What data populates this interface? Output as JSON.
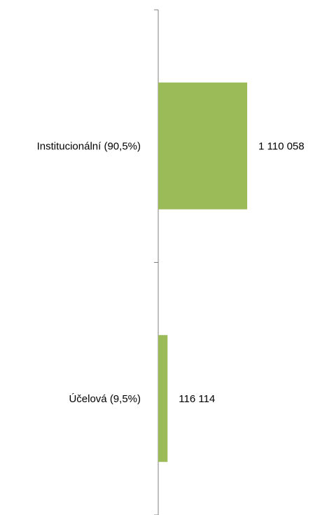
{
  "chart_data": {
    "type": "bar",
    "orientation": "horizontal",
    "categories": [
      "Institucionální (90,5%)",
      "Účelová (9,5%)"
    ],
    "values": [
      1110058,
      116114
    ],
    "data_labels": [
      "1 110 058",
      "116 114"
    ],
    "title": "",
    "xlabel": "",
    "ylabel": "",
    "xlim": [
      0,
      1250000
    ],
    "grid": false,
    "legend": "none",
    "colors": {
      "bar": "#9bbb59",
      "axis": "#808080"
    }
  }
}
